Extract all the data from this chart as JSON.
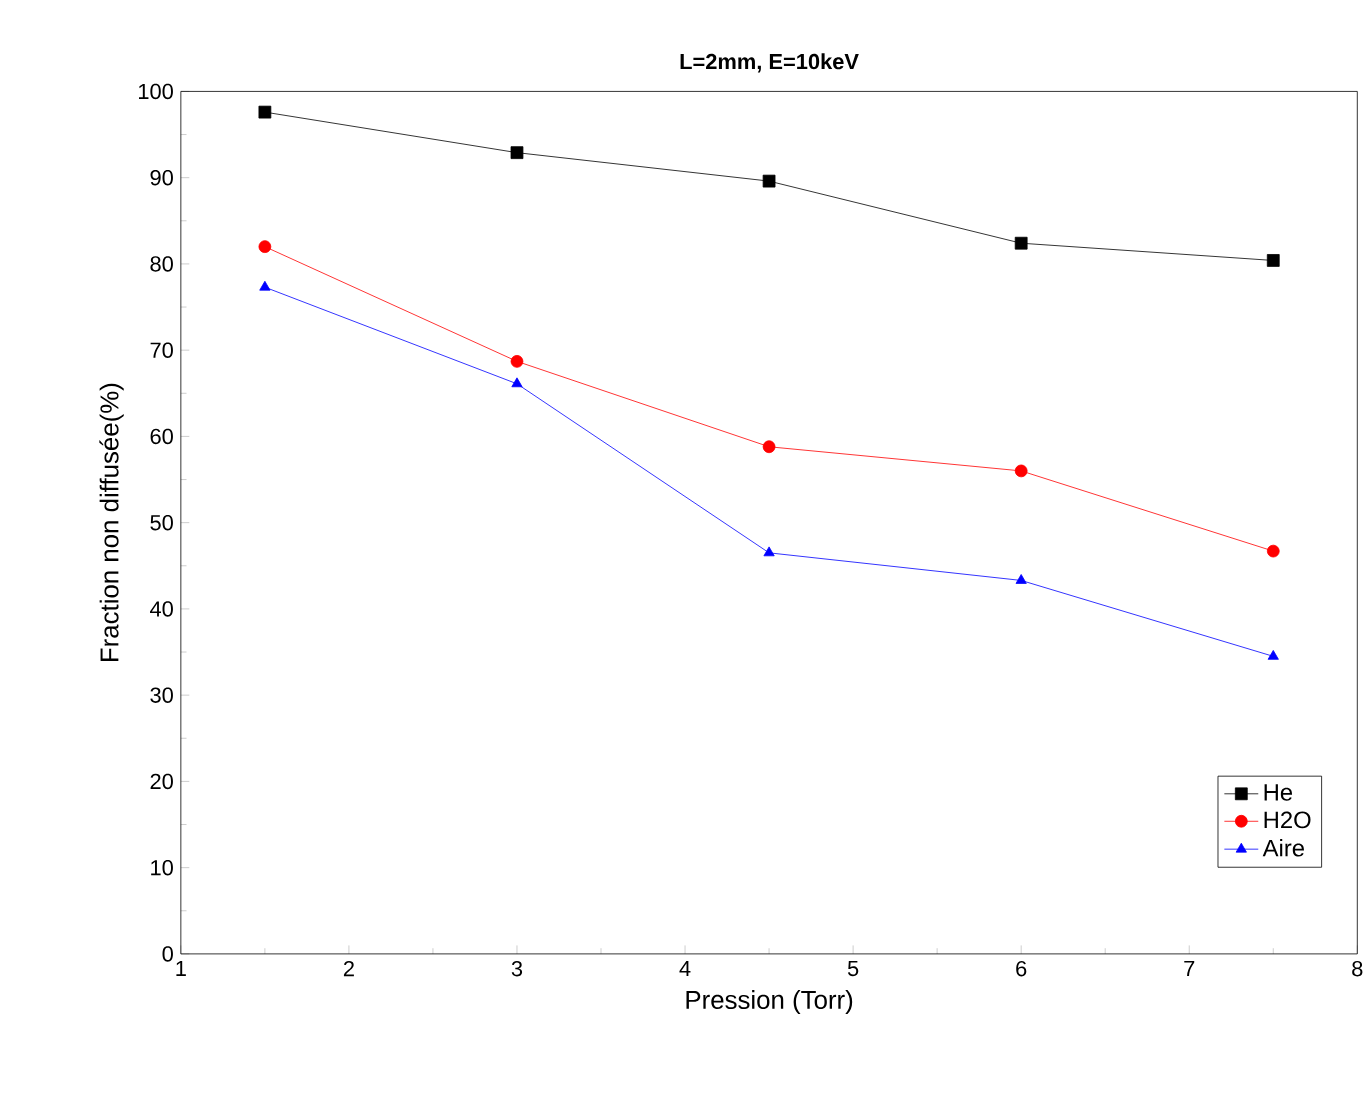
{
  "chart_data": {
    "type": "line",
    "title": "**L=2mm, E=10keV**",
    "xlabel": "Pression (Torr)",
    "ylabel": "Fraction non diffusée(%)",
    "x": [
      1.5,
      3,
      4.5,
      6,
      7.5
    ],
    "series": [
      {
        "name": "He",
        "color": "#000000",
        "marker": "square",
        "values": [
          97.6,
          92.9,
          89.6,
          82.4,
          80.4
        ]
      },
      {
        "name": "H2O",
        "color": "#ff0000",
        "marker": "circle",
        "values": [
          82.0,
          68.7,
          58.8,
          56.0,
          46.7
        ]
      },
      {
        "name": "Aire",
        "color": "#0000ff",
        "marker": "triangle",
        "values": [
          77.3,
          66.1,
          46.5,
          43.3,
          34.5
        ]
      }
    ],
    "xlim": [
      1,
      8
    ],
    "xticks": [
      1,
      2,
      3,
      4,
      5,
      6,
      7,
      8
    ],
    "ylim": [
      0,
      100
    ],
    "yticks": [
      0,
      10,
      20,
      30,
      40,
      50,
      60,
      70,
      80,
      90,
      100
    ],
    "grid": false,
    "legend": "bottom right",
    "line_style": "solid"
  }
}
